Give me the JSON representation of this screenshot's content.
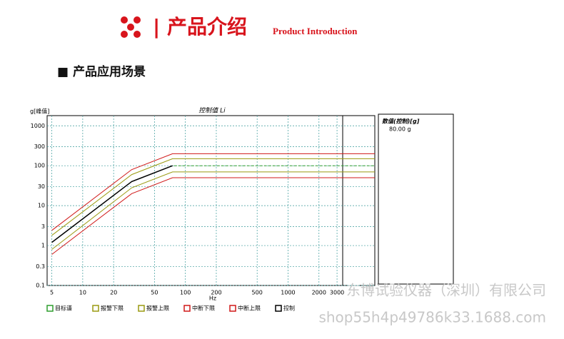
{
  "header": {
    "title": "| 产品介绍",
    "subtitle": "Product Introduction",
    "section": "■  产品应用场景"
  },
  "chart_data": {
    "type": "line",
    "title": "控制值 Li",
    "y_label": "g[峰值]",
    "x_label": "Hz",
    "xscale": "log",
    "yscale": "log",
    "grid": true,
    "x": [
      5,
      30,
      75,
      7000
    ],
    "series": [
      {
        "name": "目标谱",
        "color": "#2e9e2e",
        "values": [
          1.2,
          40,
          100,
          100
        ]
      },
      {
        "name": "报警下限",
        "color": "#9a9a10",
        "values": [
          0.8,
          28,
          70,
          70
        ]
      },
      {
        "name": "报警上限",
        "color": "#9a9a10",
        "values": [
          1.8,
          60,
          150,
          150
        ]
      },
      {
        "name": "中断下限",
        "color": "#d01818",
        "values": [
          0.6,
          20,
          50,
          50
        ]
      },
      {
        "name": "中断上限",
        "color": "#d01818",
        "values": [
          2.4,
          80,
          200,
          200
        ]
      },
      {
        "name": "控制",
        "color": "#000000",
        "values": [
          1.2,
          40,
          100,
          null
        ]
      }
    ],
    "xlim": [
      4.5,
      7000
    ],
    "ylim": [
      0.1,
      1800
    ],
    "xticks": [
      5,
      10,
      20,
      50,
      100,
      200,
      500,
      1000,
      2000,
      3000
    ],
    "yticks": [
      0.1,
      0.3,
      1,
      3,
      10,
      30,
      100,
      300,
      1000
    ]
  },
  "panel": {
    "label": "数值(控制)[g]",
    "value": "80.00 g"
  },
  "watermark": [
    "东博试验仪器（深圳）有限公司",
    "shop55h4p49786k33.1688.com"
  ]
}
